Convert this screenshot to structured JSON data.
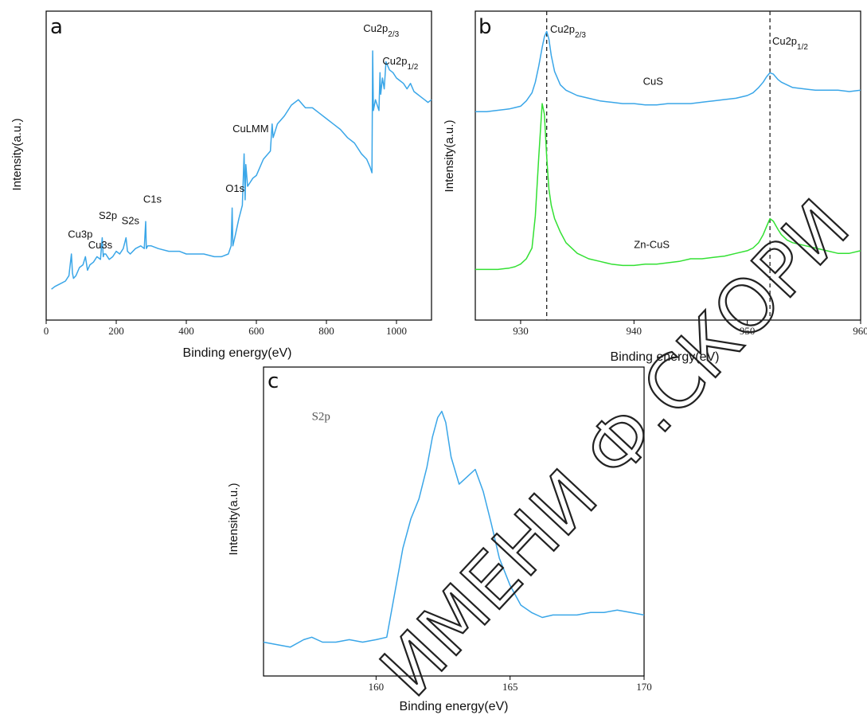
{
  "colors": {
    "blue": "#3aa6e8",
    "green": "#33e033",
    "axis": "#000000"
  },
  "chart_data": [
    {
      "id": "a",
      "type": "line",
      "panel_label": "a",
      "xlabel": "Binding energy(eV)",
      "ylabel": "Intensity(a.u.)",
      "xlim": [
        0,
        1100
      ],
      "ylim": [
        0,
        1
      ],
      "xticks": [
        0,
        200,
        400,
        600,
        800,
        1000
      ],
      "yticks_shown": false,
      "grid": false,
      "series": [
        {
          "color": "#3aa6e8",
          "x": [
            15,
            25,
            40,
            55,
            65,
            72,
            75,
            78,
            85,
            95,
            105,
            112,
            118,
            125,
            135,
            145,
            155,
            160,
            163,
            165,
            170,
            180,
            190,
            200,
            210,
            220,
            228,
            232,
            240,
            255,
            270,
            280,
            284,
            286,
            290,
            300,
            320,
            350,
            380,
            400,
            420,
            450,
            480,
            500,
            520,
            528,
            531,
            533,
            540,
            550,
            560,
            565,
            568,
            570,
            575,
            580,
            590,
            600,
            620,
            640,
            645,
            648,
            660,
            680,
            700,
            720,
            740,
            760,
            780,
            800,
            820,
            840,
            860,
            880,
            900,
            915,
            925,
            930,
            932,
            934,
            940,
            945,
            950,
            953,
            955,
            960,
            965,
            970,
            980,
            990,
            1000,
            1010,
            1020,
            1030,
            1040,
            1050,
            1060,
            1070,
            1080,
            1090,
            1100
          ],
          "y": [
            0.02,
            0.03,
            0.04,
            0.05,
            0.07,
            0.15,
            0.08,
            0.06,
            0.07,
            0.1,
            0.11,
            0.14,
            0.09,
            0.11,
            0.12,
            0.14,
            0.13,
            0.21,
            0.14,
            0.15,
            0.15,
            0.13,
            0.14,
            0.16,
            0.15,
            0.17,
            0.21,
            0.16,
            0.15,
            0.17,
            0.18,
            0.17,
            0.27,
            0.17,
            0.18,
            0.18,
            0.17,
            0.16,
            0.16,
            0.15,
            0.15,
            0.15,
            0.14,
            0.14,
            0.15,
            0.18,
            0.32,
            0.18,
            0.22,
            0.28,
            0.33,
            0.52,
            0.35,
            0.48,
            0.4,
            0.41,
            0.43,
            0.44,
            0.5,
            0.53,
            0.63,
            0.58,
            0.63,
            0.66,
            0.7,
            0.72,
            0.69,
            0.69,
            0.67,
            0.65,
            0.63,
            0.61,
            0.58,
            0.56,
            0.52,
            0.5,
            0.47,
            0.45,
            0.9,
            0.68,
            0.72,
            0.7,
            0.68,
            0.82,
            0.74,
            0.8,
            0.76,
            0.86,
            0.83,
            0.82,
            0.8,
            0.79,
            0.78,
            0.76,
            0.78,
            0.75,
            0.74,
            0.73,
            0.72,
            0.71,
            0.72
          ]
        }
      ],
      "annotations": [
        {
          "text": "Cu3p",
          "x": 62,
          "y": 0.21
        },
        {
          "text": "Cu3s",
          "x": 120,
          "y": 0.17
        },
        {
          "text": "S2p",
          "x": 150,
          "y": 0.28
        },
        {
          "text": "S2s",
          "x": 215,
          "y": 0.26
        },
        {
          "text": "C1s",
          "x": 277,
          "y": 0.34
        },
        {
          "text": "O1s",
          "x": 512,
          "y": 0.38
        },
        {
          "text": "CuLMM",
          "x": 532,
          "y": 0.6
        },
        {
          "text": "Cu2p",
          "sub": "2/3",
          "x": 905,
          "y": 0.97
        },
        {
          "text": "Cu2p",
          "sub": "1/2",
          "x": 960,
          "y": 0.85
        }
      ]
    },
    {
      "id": "b",
      "type": "line",
      "panel_label": "b",
      "xlabel": "Binding energy(eV)",
      "ylabel": "Intensity(a.u.)",
      "xlim": [
        926,
        960
      ],
      "ylim": [
        0,
        1
      ],
      "xticks": [
        930,
        940,
        950,
        960
      ],
      "yticks_shown": false,
      "grid": false,
      "vlines": [
        932.3,
        952.0
      ],
      "series": [
        {
          "name": "CuS",
          "color": "#3aa6e8",
          "x": [
            926,
            927,
            928,
            929,
            929.5,
            930,
            930.5,
            931,
            931.3,
            931.6,
            931.9,
            932.1,
            932.3,
            932.5,
            932.7,
            933,
            933.5,
            934,
            935,
            936,
            937,
            938,
            939,
            940,
            941,
            942,
            943,
            944,
            945,
            946,
            947,
            948,
            949,
            950,
            950.5,
            951,
            951.4,
            951.7,
            952,
            952.3,
            952.7,
            953,
            953.5,
            954,
            955,
            956,
            957,
            958,
            959,
            960
          ],
          "y": [
            0.69,
            0.69,
            0.695,
            0.7,
            0.705,
            0.71,
            0.73,
            0.76,
            0.8,
            0.86,
            0.93,
            0.97,
            0.99,
            0.96,
            0.9,
            0.84,
            0.79,
            0.77,
            0.75,
            0.74,
            0.73,
            0.725,
            0.72,
            0.72,
            0.715,
            0.715,
            0.72,
            0.72,
            0.72,
            0.725,
            0.73,
            0.735,
            0.74,
            0.75,
            0.76,
            0.78,
            0.8,
            0.82,
            0.835,
            0.83,
            0.81,
            0.8,
            0.79,
            0.78,
            0.775,
            0.77,
            0.77,
            0.77,
            0.765,
            0.77
          ]
        },
        {
          "name": "Zn-CuS",
          "color": "#33e033",
          "x": [
            926,
            927,
            928,
            929,
            929.5,
            930,
            930.5,
            931,
            931.3,
            931.6,
            931.9,
            932.1,
            932.3,
            932.5,
            932.7,
            933,
            933.5,
            934,
            935,
            936,
            937,
            938,
            939,
            940,
            941,
            942,
            943,
            944,
            945,
            946,
            947,
            948,
            949,
            950,
            950.5,
            951,
            951.4,
            951.7,
            952,
            952.3,
            952.7,
            953,
            953.5,
            954,
            955,
            956,
            957,
            958,
            959,
            960
          ],
          "y": [
            0.1,
            0.1,
            0.1,
            0.105,
            0.11,
            0.12,
            0.14,
            0.18,
            0.3,
            0.52,
            0.72,
            0.68,
            0.52,
            0.4,
            0.34,
            0.29,
            0.24,
            0.2,
            0.16,
            0.14,
            0.13,
            0.12,
            0.115,
            0.115,
            0.12,
            0.12,
            0.125,
            0.13,
            0.14,
            0.14,
            0.145,
            0.15,
            0.16,
            0.17,
            0.18,
            0.2,
            0.23,
            0.26,
            0.29,
            0.28,
            0.25,
            0.23,
            0.21,
            0.2,
            0.19,
            0.18,
            0.17,
            0.16,
            0.16,
            0.17
          ]
        }
      ],
      "annotations": [
        {
          "text": "Cu2p",
          "sub": "2/3",
          "x": 932.6,
          "y": 0.985
        },
        {
          "text": "Cu2p",
          "sub": "1/2",
          "x": 952.2,
          "y": 0.94
        },
        {
          "text": "CuS",
          "x": 940.8,
          "y": 0.79
        },
        {
          "text": "Zn-CuS",
          "x": 940.0,
          "y": 0.18
        }
      ]
    },
    {
      "id": "c",
      "type": "line",
      "panel_label": "c",
      "xlabel": "Binding energy(eV)",
      "ylabel": "Intensity(a.u.)",
      "xlim": [
        155.8,
        170
      ],
      "ylim": [
        0,
        1
      ],
      "xticks": [
        160,
        165,
        170
      ],
      "yticks_shown": false,
      "grid": false,
      "series": [
        {
          "color": "#3aa6e8",
          "x": [
            155.8,
            156.3,
            156.8,
            157.3,
            157.6,
            158,
            158.5,
            159,
            159.5,
            160,
            160.4,
            160.7,
            161,
            161.3,
            161.6,
            161.9,
            162.1,
            162.3,
            162.45,
            162.6,
            162.8,
            163.1,
            163.4,
            163.7,
            164,
            164.3,
            164.6,
            165,
            165.4,
            165.8,
            166.2,
            166.6,
            167,
            167.5,
            168,
            168.5,
            169,
            169.5,
            170
          ],
          "y": [
            0.05,
            0.04,
            0.03,
            0.06,
            0.07,
            0.05,
            0.05,
            0.06,
            0.05,
            0.06,
            0.07,
            0.25,
            0.43,
            0.55,
            0.63,
            0.76,
            0.88,
            0.96,
            0.985,
            0.94,
            0.8,
            0.69,
            0.72,
            0.75,
            0.66,
            0.53,
            0.39,
            0.28,
            0.2,
            0.17,
            0.15,
            0.16,
            0.16,
            0.16,
            0.17,
            0.17,
            0.18,
            0.17,
            0.16
          ]
        }
      ],
      "annotations": [
        {
          "text": "S2p",
          "x": 157.6,
          "y": 0.95,
          "style": "serif"
        }
      ]
    }
  ],
  "watermark": "ИМЕНИ Ф.СКОРИ"
}
